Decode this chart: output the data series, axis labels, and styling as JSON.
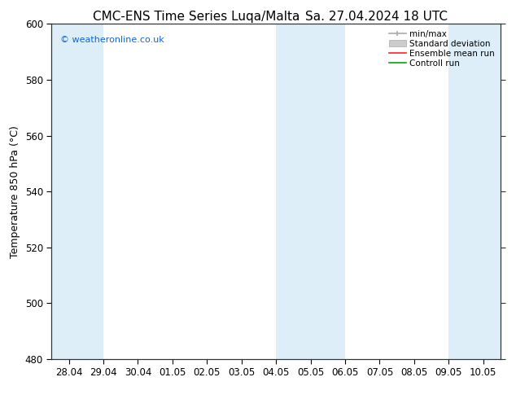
{
  "title_left": "CMC-ENS Time Series Luqa/Malta",
  "title_right": "Sa. 27.04.2024 18 UTC",
  "ylabel": "Temperature 850 hPa (°C)",
  "ylim": [
    480,
    600
  ],
  "yticks": [
    480,
    500,
    520,
    540,
    560,
    580,
    600
  ],
  "x_labels": [
    "28.04",
    "29.04",
    "30.04",
    "01.05",
    "02.05",
    "03.05",
    "04.05",
    "05.05",
    "06.05",
    "07.05",
    "08.05",
    "09.05",
    "10.05"
  ],
  "x_positions": [
    0,
    1,
    2,
    3,
    4,
    5,
    6,
    7,
    8,
    9,
    10,
    11,
    12
  ],
  "xlim": [
    -0.5,
    12.5
  ],
  "shaded_bands": [
    {
      "xmin": -0.5,
      "xmax": 1.0
    },
    {
      "xmin": 6.0,
      "xmax": 8.0
    },
    {
      "xmin": 11.0,
      "xmax": 12.5
    }
  ],
  "band_color": "#ddeef8",
  "background_color": "#ffffff",
  "plot_bg_color": "#ffffff",
  "watermark": "© weatheronline.co.uk",
  "watermark_color": "#1166cc",
  "grid_color": "#cccccc",
  "border_color": "#333333",
  "title_fontsize": 11,
  "axis_fontsize": 9,
  "tick_fontsize": 8.5,
  "legend_fontsize": 7.5,
  "minmax_color": "#aaaaaa",
  "stddev_color": "#cccccc",
  "ensemble_color": "#ff2222",
  "control_color": "#00aa00"
}
